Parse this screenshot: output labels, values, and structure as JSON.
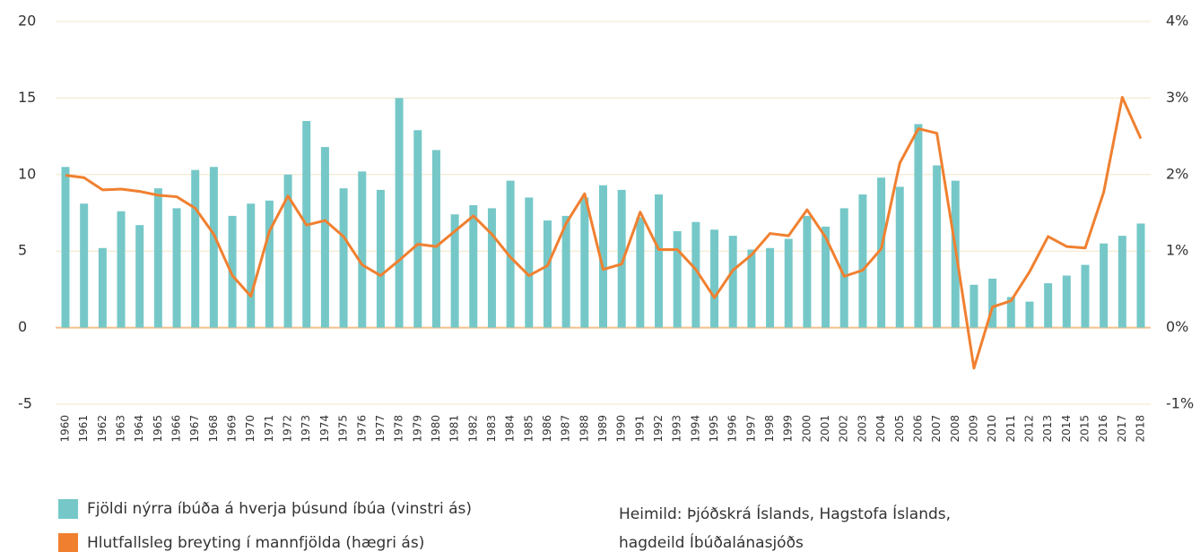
{
  "chart_data": {
    "type": "bar",
    "categories": [
      "1960",
      "1961",
      "1962",
      "1963",
      "1964",
      "1965",
      "1966",
      "1967",
      "1968",
      "1969",
      "1970",
      "1971",
      "1972",
      "1973",
      "1974",
      "1975",
      "1976",
      "1977",
      "1978",
      "1979",
      "1980",
      "1981",
      "1982",
      "1983",
      "1984",
      "1985",
      "1986",
      "1987",
      "1988",
      "1989",
      "1990",
      "1991",
      "1992",
      "1993",
      "1994",
      "1995",
      "1996",
      "1997",
      "1998",
      "1999",
      "2000",
      "2001",
      "2002",
      "2003",
      "2004",
      "2005",
      "2006",
      "2007",
      "2008",
      "2009",
      "2010",
      "2011",
      "2012",
      "2013",
      "2014",
      "2015",
      "2016",
      "2017",
      "2018"
    ],
    "series": [
      {
        "name": "Fjöldi nýrra íbúða á hverja þúsund íbúa (vinstri ás)",
        "type": "bar",
        "color": "#76c8c8",
        "axis": "y",
        "values": [
          10.5,
          8.1,
          5.2,
          7.6,
          6.7,
          9.1,
          7.8,
          10.3,
          10.5,
          7.3,
          8.1,
          8.3,
          10.0,
          13.5,
          11.8,
          9.1,
          10.2,
          9.0,
          15.0,
          12.9,
          11.6,
          7.4,
          8.0,
          7.8,
          9.6,
          8.5,
          7.0,
          7.3,
          8.5,
          9.3,
          9.0,
          7.2,
          8.7,
          6.3,
          6.9,
          6.4,
          6.0,
          5.1,
          5.2,
          5.8,
          7.3,
          6.6,
          7.8,
          8.7,
          9.8,
          9.2,
          13.3,
          10.6,
          9.6,
          2.8,
          3.2,
          2.0,
          1.7,
          2.9,
          3.4,
          4.1,
          5.5,
          6.0,
          6.8
        ]
      },
      {
        "name": "Hlutfallsleg breyting í mannfjölda (hægri ás)",
        "type": "line",
        "color": "#f08030",
        "axis": "y2",
        "values": [
          1.99,
          1.96,
          1.8,
          1.81,
          1.78,
          1.73,
          1.71,
          1.56,
          1.22,
          0.68,
          0.41,
          1.26,
          1.72,
          1.34,
          1.4,
          1.19,
          0.82,
          0.68,
          0.88,
          1.09,
          1.06,
          1.26,
          1.46,
          1.22,
          0.92,
          0.68,
          0.81,
          1.36,
          1.75,
          0.76,
          0.83,
          1.51,
          1.02,
          1.02,
          0.76,
          0.39,
          0.75,
          0.95,
          1.23,
          1.2,
          1.54,
          1.18,
          0.67,
          0.75,
          1.03,
          2.15,
          2.6,
          2.54,
          1.04,
          -0.53,
          0.27,
          0.35,
          0.73,
          1.19,
          1.06,
          1.04,
          1.77,
          3.01,
          2.47
        ]
      }
    ],
    "ylim": [
      -5,
      20
    ],
    "yticks": [
      -5,
      0,
      5,
      10,
      15,
      20
    ],
    "y2lim": [
      -1,
      4
    ],
    "y2ticks": [
      {
        "value": -1,
        "label": "-1%"
      },
      {
        "value": 0,
        "label": "0%"
      },
      {
        "value": 1,
        "label": "1%"
      },
      {
        "value": 2,
        "label": "2%"
      },
      {
        "value": 3,
        "label": "3%"
      },
      {
        "value": 4,
        "label": "4%"
      }
    ],
    "grid": true,
    "legend": "bottom-left",
    "source": [
      "Heimild: Þjóðskrá Íslands, Hagstofa Íslands,",
      "hagdeild Íbúðalánasjóðs"
    ]
  }
}
